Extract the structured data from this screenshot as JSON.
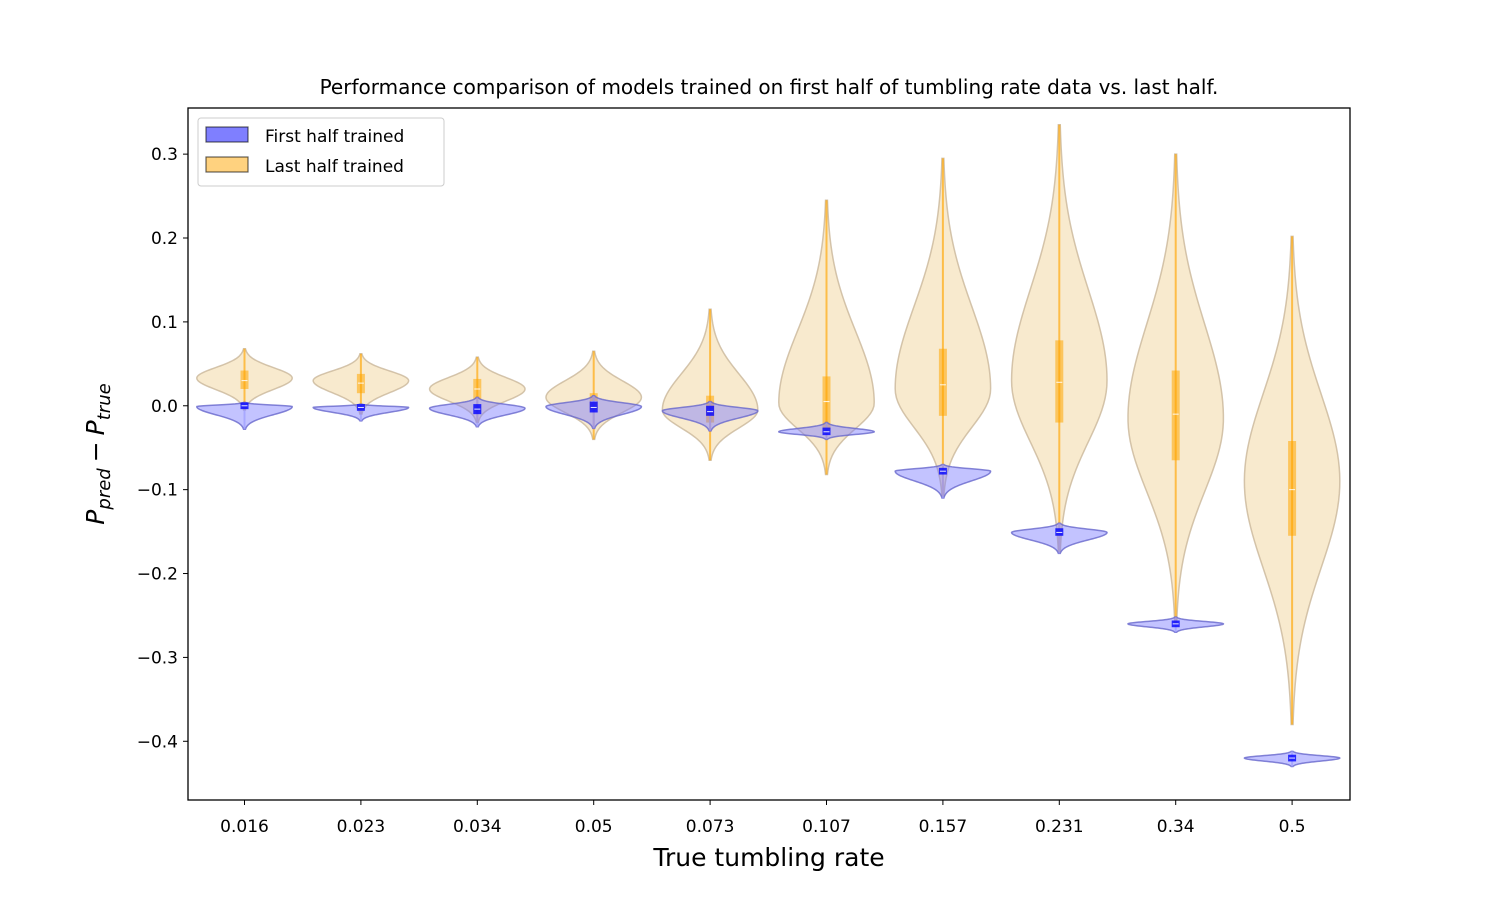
{
  "chart_data": {
    "type": "violin",
    "title": "Performance comparison of models trained on first half of tumbling rate data vs. last half.",
    "xlabel": "True tumbling rate",
    "ylabel": {
      "base": "P",
      "sub1": "pred",
      "minus": "−",
      "sub2": "true"
    },
    "categories": [
      "0.016",
      "0.023",
      "0.034",
      "0.05",
      "0.073",
      "0.107",
      "0.157",
      "0.231",
      "0.34",
      "0.5"
    ],
    "ylim": [
      -0.47,
      0.355
    ],
    "yticks": [
      -0.4,
      -0.3,
      -0.2,
      -0.1,
      0.0,
      0.1,
      0.2,
      0.3
    ],
    "ytick_labels": [
      "−0.4",
      "−0.3",
      "−0.2",
      "−0.1",
      "0.0",
      "0.1",
      "0.2",
      "0.3"
    ],
    "legend_position": "top-left",
    "series": [
      {
        "name": "First half trained",
        "color": "#0000ff",
        "violins": [
          {
            "min": -0.028,
            "q1": -0.004,
            "median": 0.0,
            "q3": 0.004,
            "max": 0.004,
            "mode": -0.001,
            "half_width": 0.41
          },
          {
            "min": -0.018,
            "q1": -0.006,
            "median": -0.002,
            "q3": 0.002,
            "max": 0.002,
            "mode": -0.002,
            "half_width": 0.41
          },
          {
            "min": -0.025,
            "q1": -0.01,
            "median": -0.004,
            "q3": 0.002,
            "max": 0.01,
            "mode": -0.003,
            "half_width": 0.41
          },
          {
            "min": -0.027,
            "q1": -0.008,
            "median": -0.002,
            "q3": 0.005,
            "max": 0.012,
            "mode": -0.001,
            "half_width": 0.41
          },
          {
            "min": -0.03,
            "q1": -0.012,
            "median": -0.007,
            "q3": 0.0,
            "max": 0.005,
            "mode": -0.006,
            "half_width": 0.41
          },
          {
            "min": -0.04,
            "q1": -0.035,
            "median": -0.031,
            "q3": -0.026,
            "max": -0.02,
            "mode": -0.031,
            "half_width": 0.41
          },
          {
            "min": -0.11,
            "q1": -0.082,
            "median": -0.078,
            "q3": -0.074,
            "max": -0.07,
            "mode": -0.078,
            "half_width": 0.41
          },
          {
            "min": -0.176,
            "q1": -0.155,
            "median": -0.151,
            "q3": -0.146,
            "max": -0.14,
            "mode": -0.151,
            "half_width": 0.41
          },
          {
            "min": -0.27,
            "q1": -0.264,
            "median": -0.26,
            "q3": -0.256,
            "max": -0.252,
            "mode": -0.26,
            "half_width": 0.41
          },
          {
            "min": -0.43,
            "q1": -0.424,
            "median": -0.42,
            "q3": -0.416,
            "max": -0.412,
            "mode": -0.42,
            "half_width": 0.41
          }
        ]
      },
      {
        "name": "Last half trained",
        "color": "#ffa500",
        "violins": [
          {
            "min": -0.005,
            "q1": 0.02,
            "median": 0.03,
            "q3": 0.042,
            "max": 0.068,
            "mode": 0.033,
            "half_width": 0.41
          },
          {
            "min": -0.01,
            "q1": 0.015,
            "median": 0.027,
            "q3": 0.038,
            "max": 0.062,
            "mode": 0.03,
            "half_width": 0.41
          },
          {
            "min": -0.02,
            "q1": 0.008,
            "median": 0.02,
            "q3": 0.032,
            "max": 0.058,
            "mode": 0.02,
            "half_width": 0.41
          },
          {
            "min": -0.04,
            "q1": -0.005,
            "median": 0.005,
            "q3": 0.015,
            "max": 0.065,
            "mode": 0.01,
            "half_width": 0.41
          },
          {
            "min": -0.065,
            "q1": -0.02,
            "median": -0.005,
            "q3": 0.012,
            "max": 0.115,
            "mode": -0.005,
            "half_width": 0.41
          },
          {
            "min": -0.082,
            "q1": -0.028,
            "median": 0.005,
            "q3": 0.035,
            "max": 0.245,
            "mode": 0.003,
            "half_width": 0.41
          },
          {
            "min": -0.108,
            "q1": -0.012,
            "median": 0.025,
            "q3": 0.068,
            "max": 0.295,
            "mode": 0.02,
            "half_width": 0.41
          },
          {
            "min": -0.175,
            "q1": -0.02,
            "median": 0.028,
            "q3": 0.078,
            "max": 0.335,
            "mode": 0.03,
            "half_width": 0.41
          },
          {
            "min": -0.26,
            "q1": -0.065,
            "median": -0.01,
            "q3": 0.042,
            "max": 0.3,
            "mode": -0.015,
            "half_width": 0.41
          },
          {
            "min": -0.38,
            "q1": -0.155,
            "median": -0.1,
            "q3": -0.042,
            "max": 0.202,
            "mode": -0.09,
            "half_width": 0.41
          }
        ]
      }
    ]
  }
}
